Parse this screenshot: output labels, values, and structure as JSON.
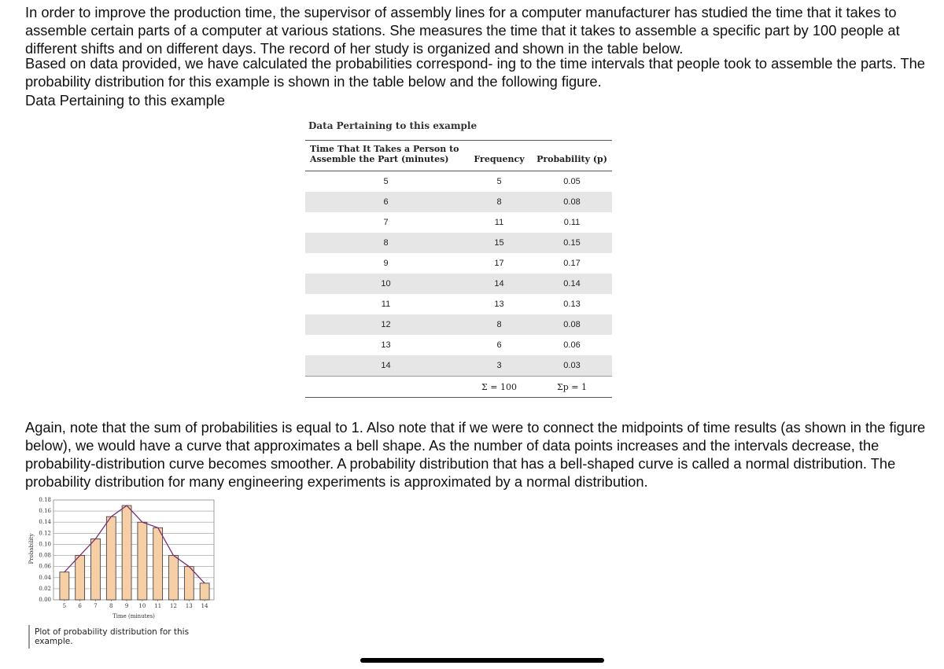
{
  "intro": {
    "paragraphs": [
      "In order to improve the production time, the supervisor of assembly lines for a computer manufacturer has studied the time that it takes to assemble certain parts of a computer at various stations. She measures the time that it takes to assemble a specific part by 100 people at different shifts and on different days. The record of her study is organized and shown in the table below.",
      "Based on data provided, we have calculated the probabilities correspond- ing to the time intervals that people took to assemble the parts. The probability distribution for this example is shown in the table below and the following figure.",
      "Data Pertaining to this example"
    ]
  },
  "table": {
    "caption": "Data Pertaining to this example",
    "header": [
      "Time That It Takes a Person to Assemble the Part (minutes)",
      "Frequency",
      "Probability (p)"
    ],
    "rows": [
      [
        5,
        5,
        0.05
      ],
      [
        6,
        8,
        0.08
      ],
      [
        7,
        11,
        0.11
      ],
      [
        8,
        15,
        0.15
      ],
      [
        9,
        17,
        0.17
      ],
      [
        10,
        14,
        0.14
      ],
      [
        11,
        13,
        0.13
      ],
      [
        12,
        8,
        0.08
      ],
      [
        13,
        6,
        0.06
      ],
      [
        14,
        3,
        0.03
      ]
    ],
    "total": {
      "frequency": "Σ = 100",
      "probability": "Σp = 1"
    }
  },
  "body": {
    "paragraphs": [
      "Again, note that the sum of probabilities is equal to 1. Also note that if we were to connect the midpoints of time results (as shown in the figure below), we would have a curve that approximates a bell shape. As the number of data points increases and the intervals decrease, the probability-distribution curve becomes smoother. A probability distribution that has a bell-shaped curve is called a normal distribution. The probability distribution for many engineering experiments is approximated by a normal distribution."
    ]
  },
  "chart_data": {
    "type": "bar",
    "xlabel": "Time (minutes)",
    "ylabel": "Probability",
    "x": [
      5,
      6,
      7,
      8,
      9,
      10,
      11,
      12,
      13,
      14
    ],
    "values": [
      0.05,
      0.08,
      0.11,
      0.15,
      0.17,
      0.14,
      0.13,
      0.08,
      0.06,
      0.03
    ],
    "color": "#f6cfa6",
    "line_color": "#7b2e72",
    "xlim": [
      4.3,
      14.6
    ],
    "xticks": [
      5,
      6,
      7,
      8,
      9,
      10,
      11,
      12,
      13,
      14
    ],
    "ylim": [
      0,
      0.18
    ],
    "yticks": [
      {
        "value": 0,
        "label": "0.00"
      },
      {
        "value": 0.02,
        "label": "0.02"
      },
      {
        "value": 0.04,
        "label": "0.04"
      },
      {
        "value": 0.06,
        "label": "0.06"
      },
      {
        "value": 0.08,
        "label": "0.08"
      },
      {
        "value": 0.1,
        "label": "0.10"
      },
      {
        "value": 0.12,
        "label": "0.12"
      },
      {
        "value": 0.14,
        "label": "0.14"
      },
      {
        "value": 0.16,
        "label": "0.16"
      },
      {
        "value": 0.18,
        "label": "0.18"
      }
    ],
    "grid": true,
    "caption": "Plot of probability distribution for this example."
  }
}
